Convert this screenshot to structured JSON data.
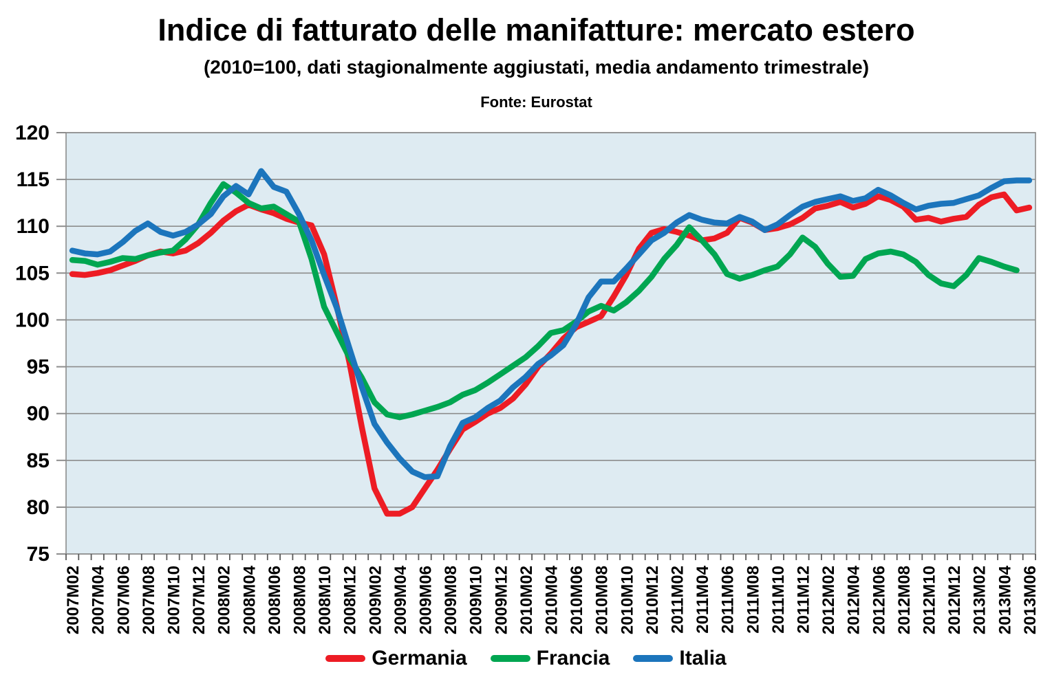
{
  "header": {
    "title": "Indice di fatturato delle manifatture: mercato estero",
    "subtitle": "(2010=100, dati stagionalmente aggiustati, media andamento trimestrale)",
    "source": "Fonte: Eurostat"
  },
  "chart_data": {
    "type": "line",
    "title": "Indice di fatturato delle manifatture: mercato estero",
    "subtitle": "(2010=100, dati stagionalmente aggiustati, media andamento trimestrale)",
    "source": "Fonte: Eurostat",
    "xlabel": "",
    "ylabel": "",
    "ylim": [
      75,
      120
    ],
    "ytick_step": 5,
    "x_label_every": 2,
    "grid": true,
    "legend_position": "bottom",
    "plot_bg": "#DEEBF2",
    "grid_color": "#8C8C8C",
    "tick_color": "#595959",
    "categories": [
      "2007M02",
      "2007M03",
      "2007M04",
      "2007M05",
      "2007M06",
      "2007M07",
      "2007M08",
      "2007M09",
      "2007M10",
      "2007M11",
      "2007M12",
      "2008M01",
      "2008M02",
      "2008M03",
      "2008M04",
      "2008M05",
      "2008M06",
      "2008M07",
      "2008M08",
      "2008M09",
      "2008M10",
      "2008M11",
      "2008M12",
      "2009M01",
      "2009M02",
      "2009M03",
      "2009M04",
      "2009M05",
      "2009M06",
      "2009M07",
      "2009M08",
      "2009M09",
      "2009M10",
      "2009M11",
      "2009M12",
      "2010M01",
      "2010M02",
      "2010M03",
      "2010M04",
      "2010M05",
      "2010M06",
      "2010M07",
      "2010M08",
      "2010M09",
      "2010M10",
      "2010M11",
      "2010M12",
      "2011M01",
      "2011M02",
      "2011M03",
      "2011M04",
      "2011M05",
      "2011M06",
      "2011M07",
      "2011M08",
      "2011M09",
      "2011M10",
      "2011M11",
      "2011M12",
      "2012M01",
      "2012M02",
      "2012M03",
      "2012M04",
      "2012M05",
      "2012M06",
      "2012M07",
      "2012M08",
      "2012M09",
      "2012M10",
      "2012M11",
      "2012M12",
      "2013M01",
      "2013M02",
      "2013M03",
      "2013M04",
      "2013M05",
      "2013M06"
    ],
    "series": [
      {
        "name": "Germania",
        "color": "#ED1C24",
        "values": [
          104.9,
          104.8,
          105.0,
          105.3,
          105.8,
          106.3,
          106.9,
          107.3,
          107.1,
          107.4,
          108.2,
          109.3,
          110.6,
          111.6,
          112.3,
          111.8,
          111.4,
          110.8,
          110.4,
          110.1,
          107.0,
          101.5,
          95.5,
          88.5,
          82.0,
          79.3,
          79.3,
          80.0,
          82.0,
          84.0,
          86.2,
          88.3,
          89.1,
          90.0,
          90.6,
          91.6,
          93.1,
          95.0,
          96.4,
          98.0,
          99.2,
          99.8,
          100.4,
          102.5,
          104.8,
          107.6,
          109.3,
          109.7,
          109.4,
          109.0,
          108.5,
          108.7,
          109.3,
          110.9,
          110.4,
          109.6,
          109.8,
          110.2,
          110.9,
          111.9,
          112.2,
          112.6,
          112.0,
          112.4,
          113.2,
          112.8,
          112.1,
          110.7,
          110.9,
          110.5,
          110.8,
          111.0,
          112.3,
          113.1,
          113.4,
          111.7,
          112.0
        ]
      },
      {
        "name": "Francia",
        "color": "#00A651",
        "values": [
          106.4,
          106.3,
          105.9,
          106.2,
          106.6,
          106.5,
          106.9,
          107.2,
          107.4,
          108.6,
          110.2,
          112.5,
          114.5,
          113.6,
          112.5,
          111.9,
          112.1,
          111.3,
          110.5,
          106.5,
          101.4,
          98.7,
          96.0,
          93.8,
          91.2,
          89.9,
          89.6,
          89.9,
          90.3,
          90.7,
          91.2,
          92.0,
          92.5,
          93.3,
          94.2,
          95.1,
          96.0,
          97.2,
          98.6,
          98.9,
          99.8,
          100.9,
          101.5,
          101.0,
          101.9,
          103.1,
          104.6,
          106.5,
          108.0,
          109.9,
          108.5,
          107.0,
          104.9,
          104.4,
          104.8,
          105.3,
          105.7,
          107.0,
          108.8,
          107.8,
          106.0,
          104.6,
          104.7,
          106.5,
          107.1,
          107.3,
          107.0,
          106.2,
          104.8,
          103.9,
          103.6,
          104.8,
          106.6,
          106.2,
          105.7,
          105.3,
          null
        ]
      },
      {
        "name": "Italia",
        "color": "#1C75BC",
        "values": [
          107.4,
          107.1,
          107.0,
          107.3,
          108.3,
          109.5,
          110.3,
          109.4,
          109.0,
          109.4,
          110.2,
          111.3,
          113.2,
          114.3,
          113.4,
          115.9,
          114.2,
          113.7,
          111.3,
          108.5,
          104.8,
          101.3,
          97.0,
          92.8,
          88.9,
          86.9,
          85.2,
          83.8,
          83.2,
          83.3,
          86.5,
          89.0,
          89.6,
          90.6,
          91.4,
          92.8,
          93.9,
          95.3,
          96.2,
          97.3,
          99.5,
          102.4,
          104.1,
          104.1,
          105.5,
          107.0,
          108.5,
          109.3,
          110.4,
          111.2,
          110.7,
          110.4,
          110.3,
          111.0,
          110.5,
          109.6,
          110.2,
          111.2,
          112.1,
          112.6,
          112.9,
          113.2,
          112.7,
          113.0,
          113.9,
          113.3,
          112.5,
          111.8,
          112.2,
          112.4,
          112.5,
          112.9,
          113.3,
          114.1,
          114.8,
          114.9,
          114.9
        ]
      }
    ]
  }
}
